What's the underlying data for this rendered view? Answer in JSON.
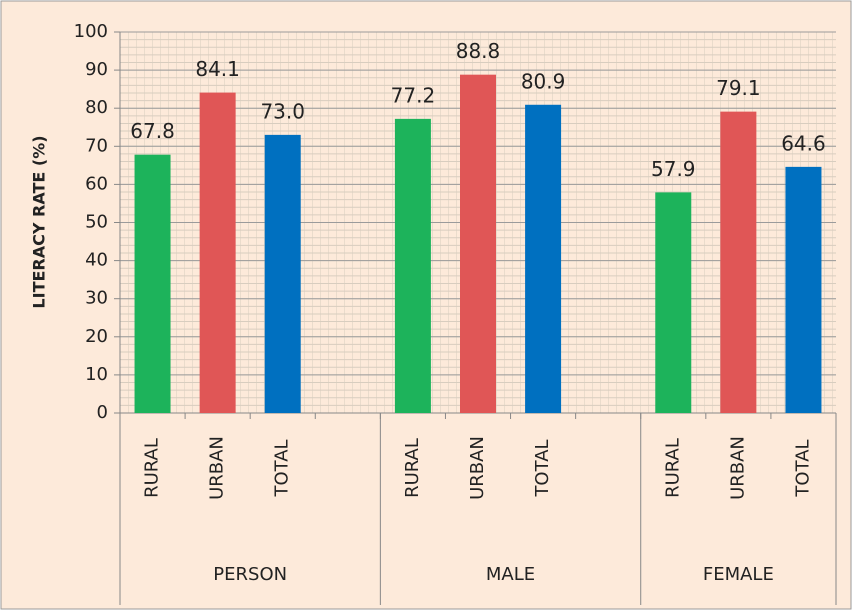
{
  "chart_data": {
    "type": "bar",
    "y_label": "LITERACY RATE (%)",
    "categories": [
      "RURAL",
      "URBAN",
      "TOTAL",
      null,
      "RURAL",
      "URBAN",
      "TOTAL",
      null,
      "RURAL",
      "URBAN",
      "TOTAL"
    ],
    "groups": [
      "PERSON",
      "MALE",
      "FEMALE"
    ],
    "values": [
      67.8,
      84.1,
      73.0,
      null,
      77.2,
      88.8,
      80.9,
      null,
      57.9,
      79.1,
      64.6
    ],
    "value_labels": [
      "67.8",
      "84.1",
      "73.0",
      null,
      "77.2",
      "88.8",
      "80.9",
      null,
      "57.9",
      "79.1",
      "64.6"
    ],
    "colors": [
      "#1db35b",
      "#e05656",
      "#0070c0",
      null,
      "#1db35b",
      "#e05656",
      "#0070c0",
      null,
      "#1db35b",
      "#e05656",
      "#0070c0"
    ],
    "ylim": [
      0,
      100
    ],
    "yticks": [
      0,
      10,
      20,
      30,
      40,
      50,
      60,
      70,
      80,
      90,
      100
    ],
    "grid": true
  }
}
